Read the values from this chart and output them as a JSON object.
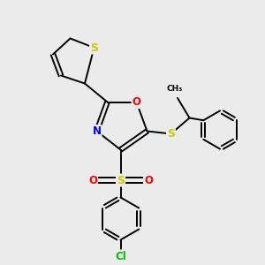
{
  "background_color": "#ebebeb",
  "bond_color": "#000000",
  "atom_colors": {
    "S": "#cccc00",
    "O": "#ff0000",
    "N": "#0000ff",
    "Cl": "#00bb00",
    "C": "#000000"
  },
  "figsize": [
    3.0,
    3.0
  ],
  "dpi": 100,
  "xlim": [
    0,
    10
  ],
  "ylim": [
    0,
    10
  ]
}
